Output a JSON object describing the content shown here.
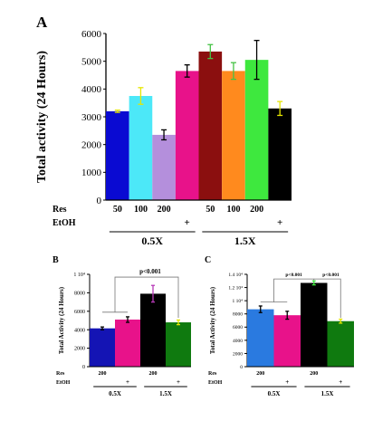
{
  "chart_data": [
    {
      "panel": "A",
      "type": "bar",
      "ylabel": "Total activity (24 Hours)",
      "ylim": [
        0,
        6000
      ],
      "yticks": [
        "0",
        "1000",
        "2000",
        "3000",
        "4000",
        "5000",
        "6000"
      ],
      "row_labels": [
        "Res",
        "EtOH"
      ],
      "res_labels": [
        "50",
        "100",
        "200",
        "",
        "50",
        "100",
        "200",
        ""
      ],
      "etoh_labels": [
        "",
        "",
        "",
        "+",
        "",
        "",
        "",
        "+"
      ],
      "groups": [
        "0.5X",
        "1.5X"
      ],
      "values": [
        3200,
        3750,
        2350,
        4650,
        5350,
        4650,
        5050,
        3300
      ],
      "errors": [
        40,
        300,
        180,
        220,
        250,
        300,
        700,
        250
      ],
      "colors": [
        "#0a0ad2",
        "#4ce8f8",
        "#b48fdc",
        "#e8128a",
        "#8b0f0f",
        "#ff8a1e",
        "#3ee83e",
        "#000000"
      ],
      "error_colors": [
        "#e6e600",
        "#e6e600",
        "#000000",
        "#000000",
        "#44c244",
        "#44c244",
        "#000000",
        "#e6e600"
      ]
    },
    {
      "panel": "B",
      "type": "bar",
      "ylabel": "Total Activity (24 Hours)",
      "ylim": [
        0,
        10000
      ],
      "yticks": [
        "0",
        "2000",
        "4000",
        "6000",
        "8000",
        "1 10⁴"
      ],
      "row_labels": [
        "Res",
        "EtOH"
      ],
      "res_labels": [
        "200",
        "",
        "200",
        ""
      ],
      "etoh_labels": [
        "",
        "+",
        "",
        "+"
      ],
      "groups": [
        "0.5X",
        "1.5X"
      ],
      "values": [
        4150,
        5100,
        7900,
        4800
      ],
      "errors": [
        150,
        300,
        900,
        250
      ],
      "colors": [
        "#1414b4",
        "#e8128a",
        "#000000",
        "#0f7a0f"
      ],
      "error_colors": [
        "#000000",
        "#000000",
        "#b83ab8",
        "#e6e600"
      ],
      "annotations": [
        "p<0.001"
      ]
    },
    {
      "panel": "C",
      "type": "bar",
      "ylabel": "Total Activity (24 Hours)",
      "ylim": [
        0,
        14000
      ],
      "yticks": [
        "0",
        "2000",
        "4000",
        "6000",
        "8000",
        "1 10⁴",
        "1.2 10⁴",
        "1.4 10⁴"
      ],
      "row_labels": [
        "Res",
        "EtOH"
      ],
      "res_labels": [
        "200",
        "",
        "200",
        ""
      ],
      "etoh_labels": [
        "",
        "+",
        "",
        "+"
      ],
      "groups": [
        "0.5X",
        "1.5X"
      ],
      "values": [
        8700,
        7800,
        12700,
        6900
      ],
      "errors": [
        500,
        600,
        300,
        300
      ],
      "colors": [
        "#2a7ae0",
        "#e8128a",
        "#000000",
        "#0f7a0f"
      ],
      "error_colors": [
        "#000000",
        "#000000",
        "#3ee83e",
        "#e6e600"
      ],
      "annotations": [
        "p<0.001",
        "p<0.001"
      ]
    }
  ]
}
